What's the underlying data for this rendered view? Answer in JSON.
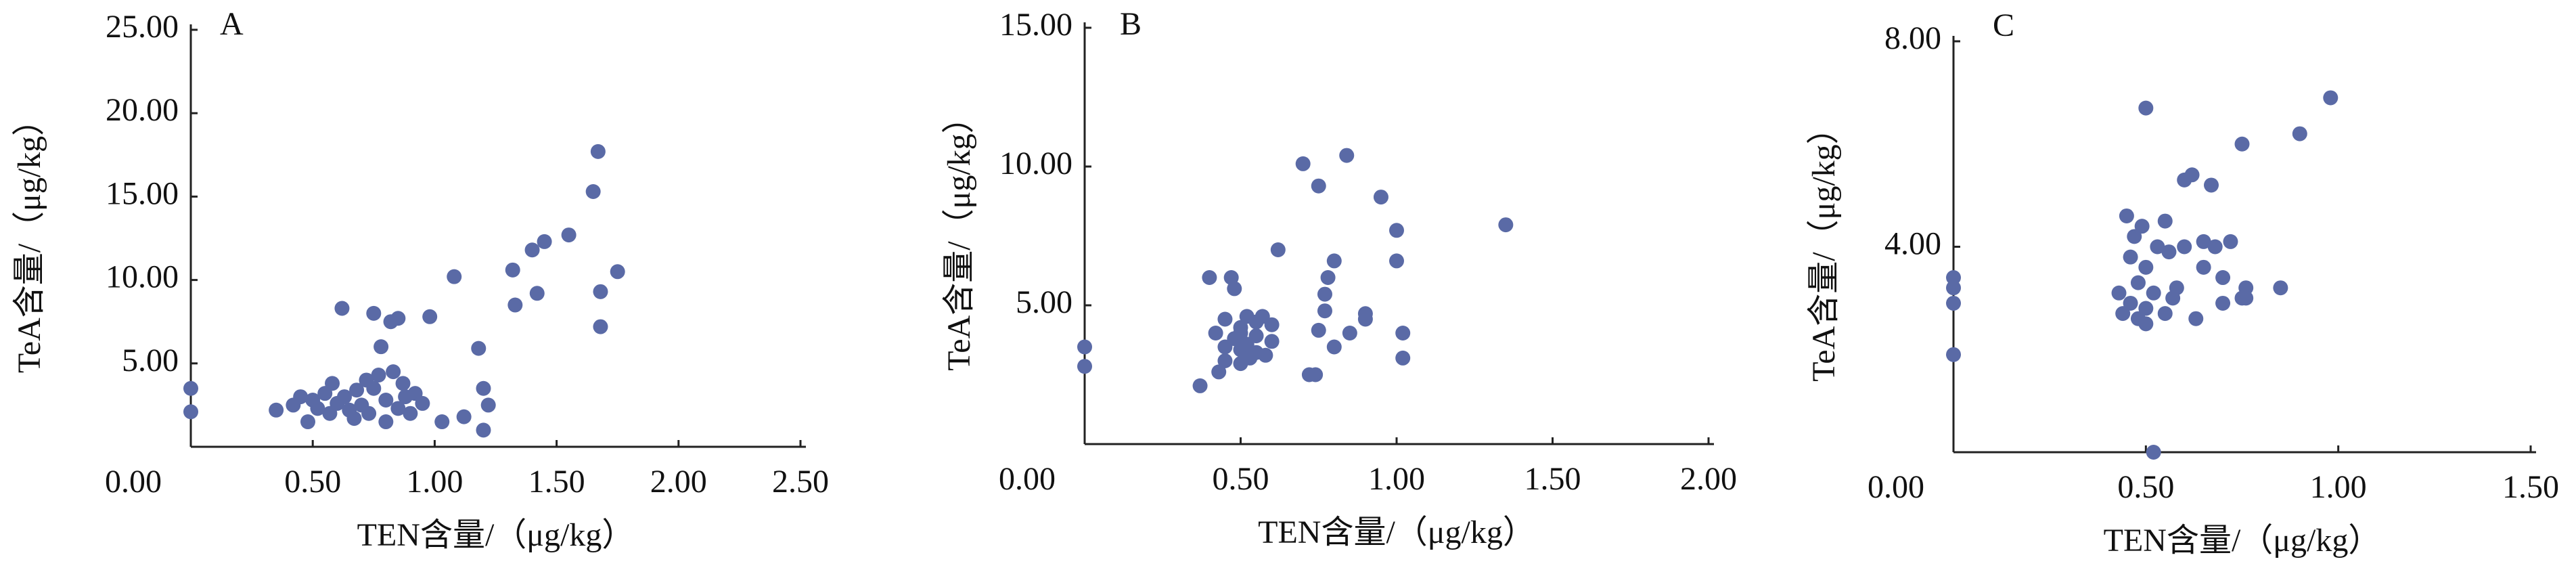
{
  "chart_data": [
    {
      "type": "scatter",
      "title": "A",
      "x_label": "TEN含量/（μg/kg）",
      "y_label": "TeA含量/（μg/kg）",
      "color": "#5a6aa6",
      "x": [
        0,
        0,
        0.35,
        0.42,
        0.45,
        0.48,
        0.5,
        0.52,
        0.55,
        0.57,
        0.58,
        0.6,
        0.62,
        0.63,
        0.65,
        0.67,
        0.68,
        0.7,
        0.72,
        0.73,
        0.75,
        0.75,
        0.77,
        0.78,
        0.8,
        0.8,
        0.82,
        0.83,
        0.85,
        0.85,
        0.87,
        0.88,
        0.9,
        0.92,
        0.95,
        0.98,
        1.03,
        1.08,
        1.12,
        1.18,
        1.2,
        1.2,
        1.22,
        1.32,
        1.33,
        1.4,
        1.42,
        1.45,
        1.55,
        1.65,
        1.67,
        1.68,
        1.68,
        1.75
      ],
      "values": [
        3.5,
        2.1,
        2.2,
        2.5,
        3.0,
        1.5,
        2.8,
        2.3,
        3.2,
        2.0,
        3.8,
        2.6,
        8.3,
        3.0,
        2.2,
        1.7,
        3.4,
        2.5,
        4.0,
        2.0,
        8.0,
        3.5,
        4.3,
        6.0,
        2.8,
        1.5,
        7.5,
        4.5,
        7.7,
        2.3,
        3.8,
        3.0,
        2.0,
        3.2,
        2.6,
        7.8,
        1.5,
        10.2,
        1.8,
        5.9,
        3.5,
        1.0,
        2.5,
        10.6,
        8.5,
        11.8,
        9.2,
        12.3,
        12.7,
        15.3,
        17.7,
        9.3,
        7.2,
        10.5
      ],
      "xlim": [
        0,
        2.5
      ],
      "ylim": [
        0,
        25
      ],
      "xticks": [
        {
          "value": 0,
          "label": "0.00"
        },
        {
          "value": 0.5,
          "label": "0.50"
        },
        {
          "value": 1,
          "label": "1.00"
        },
        {
          "value": 1.5,
          "label": "1.50"
        },
        {
          "value": 2,
          "label": "2.00"
        },
        {
          "value": 2.5,
          "label": "2.50"
        }
      ],
      "yticks": [
        {
          "value": 5,
          "label": "5.00"
        },
        {
          "value": 10,
          "label": "10.00"
        },
        {
          "value": 15,
          "label": "15.00"
        },
        {
          "value": 20,
          "label": "20.00"
        },
        {
          "value": 25,
          "label": "25.00"
        }
      ]
    },
    {
      "type": "scatter",
      "title": "B",
      "x_label": "TEN含量/（μg/kg）",
      "y_label": "TeA含量/（μg/kg）",
      "color": "#5a6aa6",
      "x": [
        0,
        0,
        0.37,
        0.4,
        0.42,
        0.43,
        0.45,
        0.45,
        0.47,
        0.48,
        0.48,
        0.5,
        0.5,
        0.5,
        0.52,
        0.52,
        0.53,
        0.55,
        0.55,
        0.55,
        0.57,
        0.58,
        0.6,
        0.6,
        0.62,
        0.7,
        0.72,
        0.74,
        0.75,
        0.75,
        0.77,
        0.77,
        0.78,
        0.8,
        0.8,
        0.84,
        0.85,
        0.9,
        0.9,
        0.95,
        1.0,
        1.0,
        1.02,
        1.02,
        1.35,
        0.45,
        0.5
      ],
      "values": [
        3.5,
        2.8,
        2.1,
        6.0,
        4.0,
        2.6,
        4.5,
        3.0,
        6.0,
        3.8,
        5.6,
        4.2,
        3.4,
        2.9,
        4.6,
        3.6,
        3.1,
        4.4,
        3.9,
        3.3,
        4.6,
        3.2,
        4.3,
        3.7,
        7.0,
        10.1,
        2.5,
        2.5,
        9.3,
        4.1,
        5.4,
        4.8,
        6.0,
        3.5,
        6.6,
        10.4,
        4.0,
        4.7,
        4.5,
        8.9,
        7.7,
        6.6,
        4.0,
        3.1,
        7.9,
        3.5,
        4.0
      ],
      "xlim": [
        0,
        2
      ],
      "ylim": [
        0,
        15
      ],
      "xticks": [
        {
          "value": 0,
          "label": "0.00"
        },
        {
          "value": 0.5,
          "label": "0.50"
        },
        {
          "value": 1,
          "label": "1.00"
        },
        {
          "value": 1.5,
          "label": "1.50"
        },
        {
          "value": 2,
          "label": "2.00"
        }
      ],
      "yticks": [
        {
          "value": 5,
          "label": "5.00"
        },
        {
          "value": 10,
          "label": "10.00"
        },
        {
          "value": 15,
          "label": "15.00"
        }
      ]
    },
    {
      "type": "scatter",
      "title": "C",
      "x_label": "TEN含量/（μg/kg）",
      "y_label": "TeA含量/（μg/kg）",
      "color": "#5a6aa6",
      "x": [
        0,
        0,
        0,
        0,
        0.43,
        0.44,
        0.45,
        0.46,
        0.46,
        0.47,
        0.48,
        0.48,
        0.49,
        0.5,
        0.5,
        0.5,
        0.52,
        0.53,
        0.55,
        0.55,
        0.56,
        0.57,
        0.58,
        0.6,
        0.6,
        0.62,
        0.63,
        0.65,
        0.65,
        0.67,
        0.68,
        0.7,
        0.7,
        0.72,
        0.75,
        0.75,
        0.76,
        0.76,
        0.85,
        0.9,
        0.98,
        0.5,
        0.52
      ],
      "values": [
        3.4,
        3.2,
        2.9,
        1.9,
        3.1,
        2.7,
        4.6,
        3.8,
        2.9,
        4.2,
        3.3,
        2.6,
        4.4,
        6.7,
        2.8,
        3.6,
        0.0,
        4.0,
        4.5,
        2.7,
        3.9,
        3.0,
        3.2,
        5.3,
        4.0,
        5.4,
        2.6,
        4.1,
        3.6,
        5.2,
        4.0,
        3.4,
        2.9,
        4.1,
        6.0,
        3.0,
        3.2,
        3.0,
        3.2,
        6.2,
        6.9,
        2.5,
        3.1
      ],
      "xlim": [
        0,
        1.5
      ],
      "ylim": [
        0,
        8
      ],
      "xticks": [
        {
          "value": 0,
          "label": "0.00"
        },
        {
          "value": 0.5,
          "label": "0.50"
        },
        {
          "value": 1,
          "label": "1.00"
        },
        {
          "value": 1.5,
          "label": "1.50"
        }
      ],
      "yticks": [
        {
          "value": 4,
          "label": "4.00"
        },
        {
          "value": 8,
          "label": "8.00"
        }
      ]
    }
  ]
}
